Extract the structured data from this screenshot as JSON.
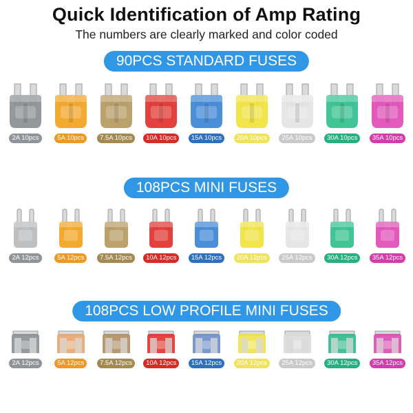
{
  "header": {
    "title": "Quick Identification of Amp Rating",
    "subtitle": "The numbers are clearly marked and color coded"
  },
  "sections": [
    {
      "banner": "90PCS STANDARD FUSES",
      "kind": "standard",
      "fuses": [
        {
          "label": "2A 10pcs",
          "color": "#8a8f92",
          "tag_color": "#8f9498"
        },
        {
          "label": "5A 10pcs",
          "color": "#f2a31f",
          "tag_color": "#ee9a22"
        },
        {
          "label": "7.5A 10pcs",
          "color": "#b59a61",
          "tag_color": "#a38a52"
        },
        {
          "label": "10A 10pcs",
          "color": "#e0312c",
          "tag_color": "#d62b27"
        },
        {
          "label": "15A 10pcs",
          "color": "#3c86d6",
          "tag_color": "#2f6fbf"
        },
        {
          "label": "20A 10pcs",
          "color": "#f1e33a",
          "tag_color": "#eee35a"
        },
        {
          "label": "25A 10pcs",
          "color": "#e4e4e4",
          "tag_color": "#c9c9c9"
        },
        {
          "label": "30A 10pcs",
          "color": "#31c08e",
          "tag_color": "#27b07f"
        },
        {
          "label": "35A 10pcs",
          "color": "#e04cb5",
          "tag_color": "#d43ca9"
        }
      ]
    },
    {
      "banner": "108PCS MINI FUSES",
      "kind": "mini",
      "fuses": [
        {
          "label": "2A 12pcs",
          "color": "#b7babc",
          "tag_color": "#8f9498"
        },
        {
          "label": "5A 12pcs",
          "color": "#f2a31f",
          "tag_color": "#ee9a22"
        },
        {
          "label": "7.5A 12pcs",
          "color": "#b59a61",
          "tag_color": "#a38a52"
        },
        {
          "label": "10A 12pcs",
          "color": "#e0312c",
          "tag_color": "#d62b27"
        },
        {
          "label": "15A 12pcs",
          "color": "#3c86d6",
          "tag_color": "#2f6fbf"
        },
        {
          "label": "20A 12pcs",
          "color": "#f1e33a",
          "tag_color": "#eee35a"
        },
        {
          "label": "25A 12pcs",
          "color": "#e4e4e4",
          "tag_color": "#c9c9c9"
        },
        {
          "label": "30A 12pcs",
          "color": "#31c08e",
          "tag_color": "#27b07f"
        },
        {
          "label": "35A 12pcs",
          "color": "#e04cb5",
          "tag_color": "#d43ca9"
        }
      ]
    },
    {
      "banner": "108PCS LOW PROFILE MINI FUSES",
      "kind": "low",
      "fuses": [
        {
          "label": "2A 12pcs",
          "color": "#8a8f92",
          "tag_color": "#8f9498"
        },
        {
          "label": "5A 12pcs",
          "color": "#e8a56e",
          "tag_color": "#ee9a22"
        },
        {
          "label": "7.5A 12pcs",
          "color": "#b08e62",
          "tag_color": "#a38a52"
        },
        {
          "label": "10A 12pcs",
          "color": "#e0312c",
          "tag_color": "#d62b27"
        },
        {
          "label": "15A 12pcs",
          "color": "#6c8fc9",
          "tag_color": "#2f6fbf"
        },
        {
          "label": "20A 12pcs",
          "color": "#eee24a",
          "tag_color": "#eee35a"
        },
        {
          "label": "25A 12pcs",
          "color": "#dcdcdc",
          "tag_color": "#c9c9c9"
        },
        {
          "label": "30A 12pcs",
          "color": "#2fb98a",
          "tag_color": "#27b07f"
        },
        {
          "label": "35A 12pcs",
          "color": "#d94cb0",
          "tag_color": "#d43ca9"
        }
      ]
    }
  ]
}
